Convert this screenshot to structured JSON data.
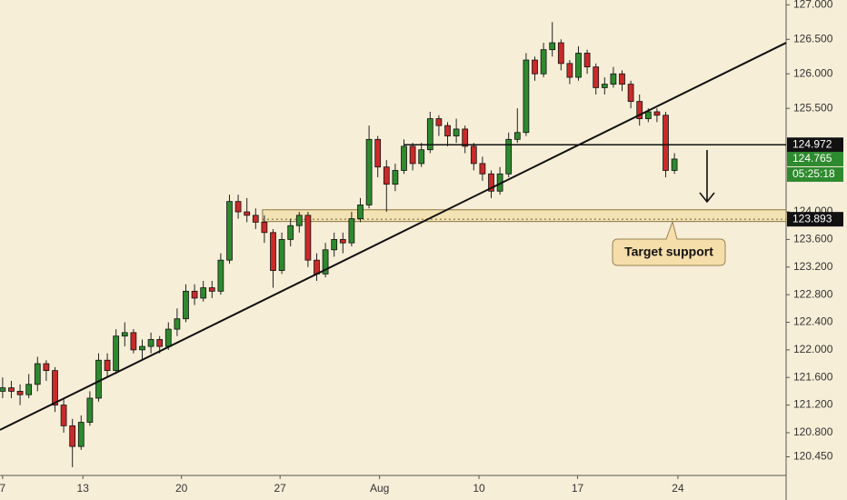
{
  "chart_data": {
    "type": "candlestick",
    "xlim": [
      -0.3,
      89.8
    ],
    "xticks": [
      {
        "value": 0,
        "label": "7"
      },
      {
        "value": 9.2,
        "label": "13"
      },
      {
        "value": 20.5,
        "label": "20"
      },
      {
        "value": 31.8,
        "label": "27"
      },
      {
        "value": 43.2,
        "label": "Aug"
      },
      {
        "value": 54.6,
        "label": "10"
      },
      {
        "value": 65.9,
        "label": "17"
      },
      {
        "value": 77.4,
        "label": "24"
      }
    ],
    "ylim": [
      120.18,
      127.07
    ],
    "yticks": [
      {
        "value": 127,
        "label": "127.000"
      },
      {
        "value": 126.5,
        "label": "126.500"
      },
      {
        "value": 126,
        "label": "126.000"
      },
      {
        "value": 125.5,
        "label": "125.500"
      },
      {
        "value": 124,
        "label": "124.000"
      },
      {
        "value": 123.6,
        "label": "123.600"
      },
      {
        "value": 123.2,
        "label": "123.200"
      },
      {
        "value": 122.8,
        "label": "122.800"
      },
      {
        "value": 122.4,
        "label": "122.400"
      },
      {
        "value": 122,
        "label": "122.000"
      },
      {
        "value": 121.6,
        "label": "121.600"
      },
      {
        "value": 121.2,
        "label": "121.200"
      },
      {
        "value": 120.8,
        "label": "120.800"
      },
      {
        "value": 120.45,
        "label": "120.450"
      }
    ],
    "up_color": "#2e8a2e",
    "down_color": "#c92a2a",
    "ohlc": [
      [
        121.4,
        121.6,
        121.3,
        121.45
      ],
      [
        121.45,
        121.55,
        121.3,
        121.4
      ],
      [
        121.4,
        121.5,
        121.2,
        121.35
      ],
      [
        121.35,
        121.65,
        121.3,
        121.5
      ],
      [
        121.5,
        121.9,
        121.4,
        121.8
      ],
      [
        121.8,
        121.85,
        121.55,
        121.7
      ],
      [
        121.7,
        121.75,
        121.1,
        121.2
      ],
      [
        121.2,
        121.3,
        120.8,
        120.9
      ],
      [
        120.9,
        121.0,
        120.3,
        120.6
      ],
      [
        120.6,
        121.05,
        120.55,
        120.95
      ],
      [
        120.95,
        121.4,
        120.9,
        121.3
      ],
      [
        121.3,
        121.95,
        121.25,
        121.85
      ],
      [
        121.85,
        121.95,
        121.6,
        121.7
      ],
      [
        121.7,
        122.3,
        121.65,
        122.2
      ],
      [
        122.2,
        122.4,
        122.05,
        122.25
      ],
      [
        122.25,
        122.3,
        121.95,
        122.0
      ],
      [
        122.0,
        122.15,
        121.85,
        122.05
      ],
      [
        122.05,
        122.25,
        121.95,
        122.15
      ],
      [
        122.15,
        122.2,
        121.95,
        122.05
      ],
      [
        122.05,
        122.4,
        122.0,
        122.3
      ],
      [
        122.3,
        122.6,
        122.2,
        122.45
      ],
      [
        122.45,
        122.95,
        122.4,
        122.85
      ],
      [
        122.85,
        122.95,
        122.65,
        122.75
      ],
      [
        122.75,
        123.0,
        122.7,
        122.9
      ],
      [
        122.9,
        123.0,
        122.75,
        122.85
      ],
      [
        122.85,
        123.4,
        122.8,
        123.3
      ],
      [
        123.3,
        124.25,
        123.25,
        124.15
      ],
      [
        124.15,
        124.25,
        123.9,
        124.0
      ],
      [
        124.0,
        124.2,
        123.85,
        123.95
      ],
      [
        123.95,
        124.05,
        123.75,
        123.85
      ],
      [
        123.85,
        123.95,
        123.55,
        123.7
      ],
      [
        123.7,
        123.75,
        122.9,
        123.15
      ],
      [
        123.15,
        123.7,
        123.1,
        123.6
      ],
      [
        123.6,
        123.9,
        123.5,
        123.8
      ],
      [
        123.8,
        124.0,
        123.7,
        123.95
      ],
      [
        123.95,
        124.0,
        123.2,
        123.3
      ],
      [
        123.3,
        123.4,
        123.0,
        123.1
      ],
      [
        123.1,
        123.55,
        123.05,
        123.45
      ],
      [
        123.45,
        123.7,
        123.35,
        123.6
      ],
      [
        123.6,
        123.7,
        123.4,
        123.55
      ],
      [
        123.55,
        124.0,
        123.5,
        123.9
      ],
      [
        123.9,
        124.2,
        123.85,
        124.1
      ],
      [
        124.1,
        125.25,
        124.05,
        125.05
      ],
      [
        125.05,
        125.1,
        124.5,
        124.65
      ],
      [
        124.65,
        124.75,
        124.0,
        124.4
      ],
      [
        124.4,
        124.7,
        124.3,
        124.6
      ],
      [
        124.6,
        125.05,
        124.55,
        124.95
      ],
      [
        124.95,
        125.0,
        124.6,
        124.7
      ],
      [
        124.7,
        125.0,
        124.65,
        124.9
      ],
      [
        124.9,
        125.45,
        124.85,
        125.35
      ],
      [
        125.35,
        125.4,
        125.1,
        125.25
      ],
      [
        125.25,
        125.3,
        124.95,
        125.1
      ],
      [
        125.1,
        125.35,
        125.0,
        125.2
      ],
      [
        125.2,
        125.25,
        124.85,
        124.95
      ],
      [
        124.95,
        125.0,
        124.6,
        124.7
      ],
      [
        124.7,
        124.8,
        124.45,
        124.55
      ],
      [
        124.55,
        124.6,
        124.2,
        124.3
      ],
      [
        124.3,
        124.65,
        124.25,
        124.55
      ],
      [
        124.55,
        125.15,
        124.5,
        125.05
      ],
      [
        125.05,
        125.5,
        125.0,
        125.15
      ],
      [
        125.15,
        126.3,
        125.1,
        126.2
      ],
      [
        126.2,
        126.25,
        125.9,
        126.0
      ],
      [
        126.0,
        126.45,
        125.95,
        126.35
      ],
      [
        126.35,
        126.75,
        126.25,
        126.45
      ],
      [
        126.45,
        126.5,
        126.05,
        126.15
      ],
      [
        126.15,
        126.2,
        125.85,
        125.95
      ],
      [
        125.95,
        126.4,
        125.9,
        126.3
      ],
      [
        126.3,
        126.35,
        126.0,
        126.1
      ],
      [
        126.1,
        126.15,
        125.7,
        125.8
      ],
      [
        125.8,
        125.95,
        125.7,
        125.85
      ],
      [
        125.85,
        126.1,
        125.8,
        126.0
      ],
      [
        126.0,
        126.05,
        125.75,
        125.85
      ],
      [
        125.85,
        125.9,
        125.5,
        125.6
      ],
      [
        125.6,
        125.7,
        125.25,
        125.35
      ],
      [
        125.35,
        125.5,
        125.3,
        125.45
      ],
      [
        125.45,
        125.5,
        125.3,
        125.4
      ],
      [
        125.4,
        125.45,
        124.5,
        124.6
      ],
      [
        124.6,
        124.85,
        124.55,
        124.765
      ]
    ],
    "trendline": [
      120.84,
      126.45
    ],
    "resistance": 124.972,
    "support_zone": [
      123.86,
      124.03
    ],
    "support": 123.893,
    "last_price": 124.765,
    "countdown": "05:25:18",
    "annotation": "Target support"
  }
}
